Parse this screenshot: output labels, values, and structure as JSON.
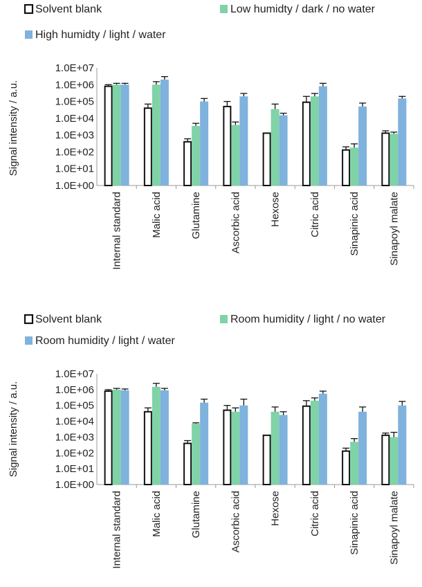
{
  "colors": {
    "solvent": "#ffffff",
    "solvent_stroke": "#111111",
    "green": "#7fd3a7",
    "blue": "#7fb2dd",
    "axis": "#9a9a9a",
    "errorbar": "#111111"
  },
  "chart_data": [
    {
      "type": "bar",
      "scale": "log",
      "ylabel": "Signal intensity / a.u.",
      "ylim": [
        1,
        10000000
      ],
      "yticks": [
        "1.0E+00",
        "1.0E+01",
        "1.0E+02",
        "1.0E+03",
        "1.0E+04",
        "1.0E+05",
        "1.0E+06",
        "1.0E+07"
      ],
      "categories": [
        "Internal standard",
        "Malic acid",
        "Glutamine",
        "Ascorbic acid",
        "Hexose",
        "Citric acid",
        "Sinapinic acid",
        "Sinapoyl malate"
      ],
      "series": [
        {
          "name": "Solvent blank",
          "color_key": "solvent",
          "values": [
            800000,
            40000,
            400,
            50000,
            1300,
            90000,
            130,
            1300
          ],
          "err_upper": [
            1000000,
            70000,
            600,
            100000,
            null,
            200000,
            200,
            1800
          ]
        },
        {
          "name": "Low humidty / dark / no water",
          "color_key": "green",
          "values": [
            1000000,
            1000000,
            3500,
            4000,
            35000,
            200000,
            180,
            1200
          ],
          "err_upper": [
            1200000,
            1500000,
            5000,
            6000,
            70000,
            300000,
            300,
            1500
          ]
        },
        {
          "name": "High humidty / light / water",
          "color_key": "blue",
          "values": [
            1000000,
            2000000,
            100000,
            200000,
            15000,
            800000,
            50000,
            150000
          ],
          "err_upper": [
            1200000,
            3000000,
            150000,
            300000,
            20000,
            1200000,
            80000,
            200000
          ]
        }
      ]
    },
    {
      "type": "bar",
      "scale": "log",
      "ylabel": "Signal intensity / a.u.",
      "ylim": [
        1,
        10000000
      ],
      "yticks": [
        "1.0E+00",
        "1.0E+01",
        "1.0E+02",
        "1.0E+03",
        "1.0E+04",
        "1.0E+05",
        "1.0E+06",
        "1.0E+07"
      ],
      "categories": [
        "Internal standard",
        "Malic acid",
        "Glutamine",
        "Ascorbic acid",
        "Hexose",
        "Citric acid",
        "Sinapinic acid",
        "Sinapoyl malate"
      ],
      "series": [
        {
          "name": "Solvent blank",
          "color_key": "solvent",
          "values": [
            800000,
            40000,
            400,
            50000,
            1300,
            90000,
            130,
            1300
          ],
          "err_upper": [
            1000000,
            70000,
            600,
            100000,
            null,
            200000,
            200,
            1800
          ]
        },
        {
          "name": "Room humidity / light / no water",
          "color_key": "green",
          "values": [
            1000000,
            1500000,
            7000,
            40000,
            40000,
            200000,
            500,
            1000
          ],
          "err_upper": [
            1200000,
            2500000,
            8000,
            70000,
            80000,
            300000,
            800,
            2000
          ]
        },
        {
          "name": "Room humidity / light / water",
          "color_key": "blue",
          "values": [
            900000,
            900000,
            150000,
            100000,
            25000,
            550000,
            40000,
            100000
          ],
          "err_upper": [
            1100000,
            1200000,
            250000,
            250000,
            40000,
            800000,
            80000,
            180000
          ]
        }
      ]
    }
  ]
}
